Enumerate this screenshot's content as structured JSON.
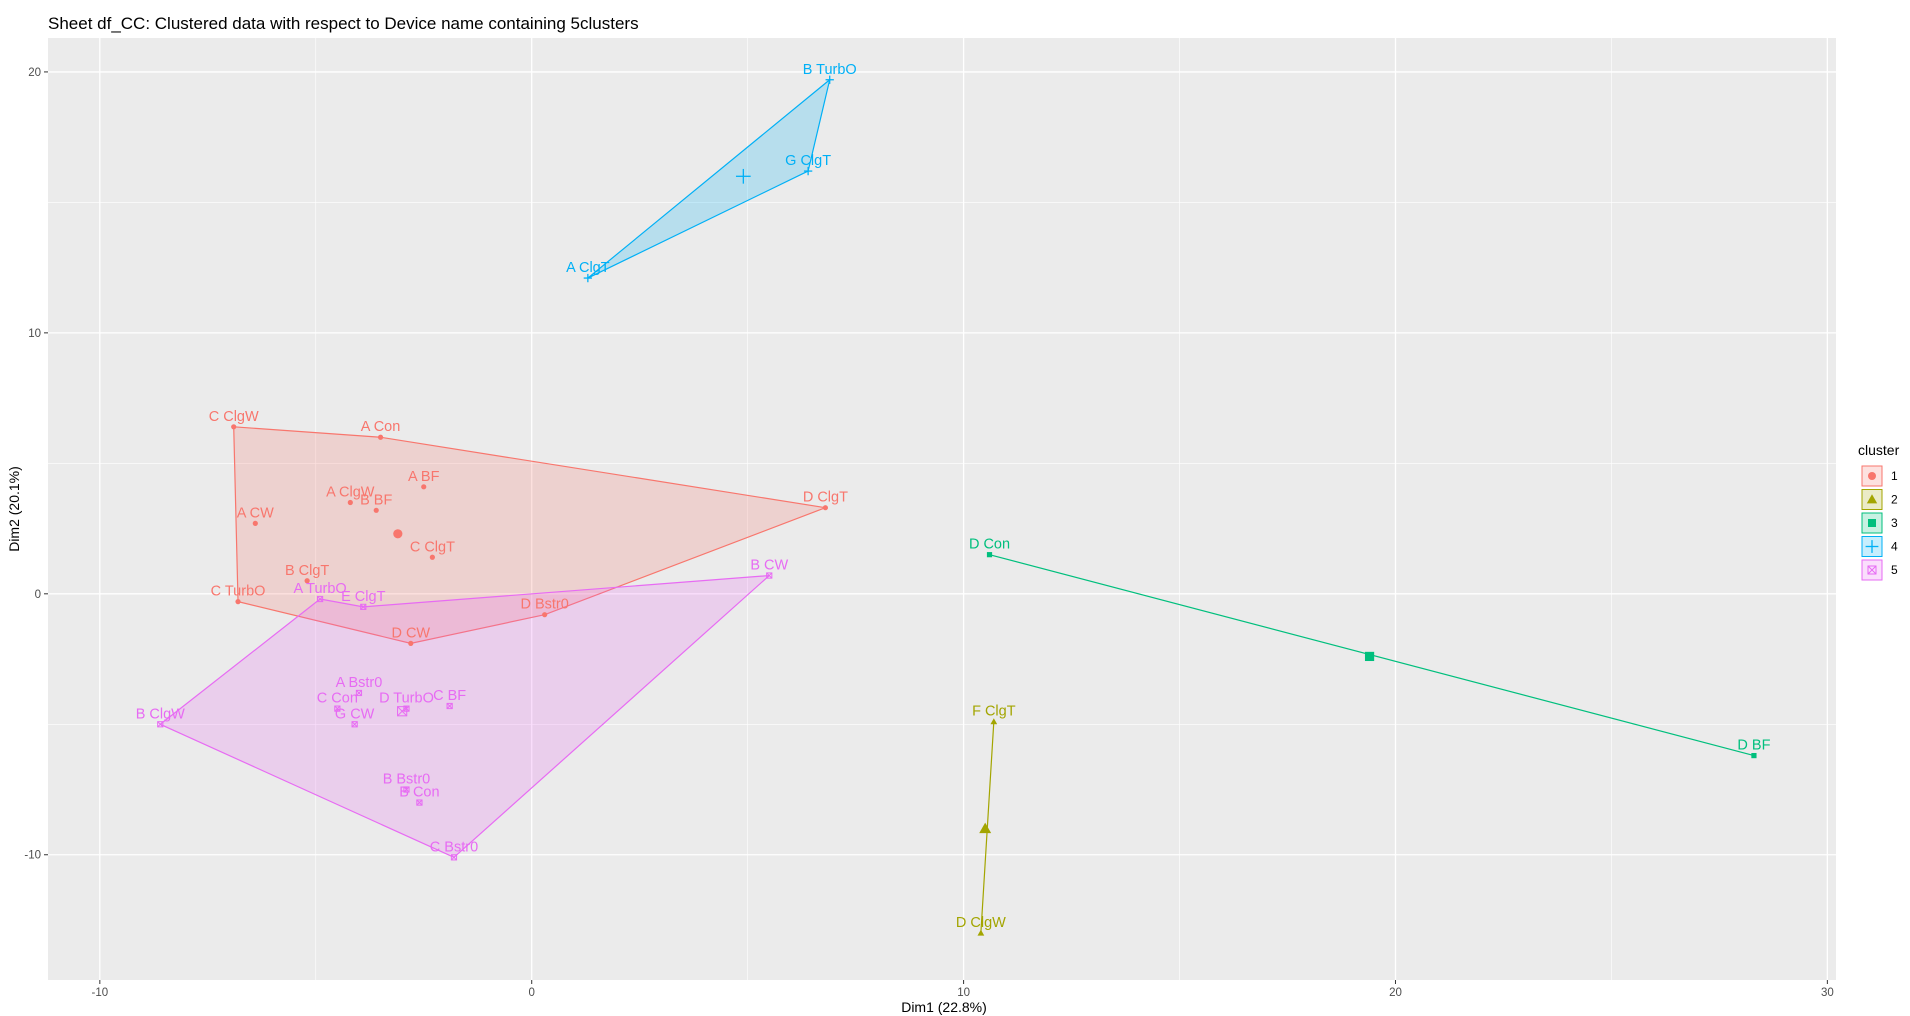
{
  "chart_data": {
    "type": "scatter",
    "title": "Sheet df_CC: Clustered data with respect to Device name containing 5clusters",
    "xlabel": "Dim1 (22.8%)",
    "ylabel": "Dim2 (20.1%)",
    "xlim": [
      -11.2,
      30.2
    ],
    "ylim": [
      -14.8,
      21.3
    ],
    "x_ticks": [
      -10,
      0,
      10,
      20,
      30
    ],
    "y_ticks": [
      -10,
      0,
      10,
      20
    ],
    "grid": true,
    "legend": {
      "title": "cluster",
      "placement": "right"
    },
    "clusters": [
      {
        "name": "1",
        "color": "#F8766D",
        "shape": "circle",
        "center": [
          -3.1,
          2.3
        ],
        "hull": [
          "C ClgW",
          "A Con",
          "D ClgT",
          "D Bstr0",
          "D CW",
          "C TurbO"
        ],
        "points": [
          {
            "label": "C ClgW",
            "x": -6.9,
            "y": 6.4
          },
          {
            "label": "A Con",
            "x": -3.5,
            "y": 6.0
          },
          {
            "label": "A BF",
            "x": -2.5,
            "y": 4.1
          },
          {
            "label": "A ClgW",
            "x": -4.2,
            "y": 3.5
          },
          {
            "label": "B BF",
            "x": -3.6,
            "y": 3.2
          },
          {
            "label": "A CW",
            "x": -6.4,
            "y": 2.7
          },
          {
            "label": "C ClgT",
            "x": -2.3,
            "y": 1.4
          },
          {
            "label": "D ClgT",
            "x": 6.8,
            "y": 3.3
          },
          {
            "label": "B ClgT",
            "x": -5.2,
            "y": 0.5
          },
          {
            "label": "C TurbO",
            "x": -6.8,
            "y": -0.3
          },
          {
            "label": "D Bstr0",
            "x": 0.3,
            "y": -0.8
          },
          {
            "label": "D CW",
            "x": -2.8,
            "y": -1.9
          }
        ]
      },
      {
        "name": "2",
        "color": "#A3A500",
        "shape": "triangle",
        "center": [
          10.5,
          -9.0
        ],
        "hull": [
          "F ClgT",
          "D ClgW"
        ],
        "points": [
          {
            "label": "F ClgT",
            "x": 10.7,
            "y": -4.9
          },
          {
            "label": "D ClgW",
            "x": 10.4,
            "y": -13.0
          }
        ]
      },
      {
        "name": "3",
        "color": "#00BF7D",
        "shape": "square",
        "center": [
          19.4,
          -2.4
        ],
        "hull": [
          "D Con",
          "D BF"
        ],
        "points": [
          {
            "label": "D Con",
            "x": 10.6,
            "y": 1.5
          },
          {
            "label": "D BF",
            "x": 28.3,
            "y": -6.2
          }
        ]
      },
      {
        "name": "4",
        "color": "#00B0F6",
        "shape": "plus",
        "center": [
          4.9,
          16.0
        ],
        "hull": [
          "B TurbO",
          "G ClgT",
          "A ClgT"
        ],
        "points": [
          {
            "label": "B TurbO",
            "x": 6.9,
            "y": 19.7
          },
          {
            "label": "G ClgT",
            "x": 6.4,
            "y": 16.2
          },
          {
            "label": "A ClgT",
            "x": 1.3,
            "y": 12.1
          }
        ]
      },
      {
        "name": "5",
        "color": "#E76BF3",
        "shape": "square-cross",
        "center": [
          -3.0,
          -4.5
        ],
        "hull": [
          "B CW",
          "C Bstr0",
          "B ClgW",
          "A TurbO",
          "E ClgT"
        ],
        "points": [
          {
            "label": "B CW",
            "x": 5.5,
            "y": 0.7
          },
          {
            "label": "A TurbO",
            "x": -4.9,
            "y": -0.2
          },
          {
            "label": "E ClgT",
            "x": -3.9,
            "y": -0.5
          },
          {
            "label": "A Bstr0",
            "x": -4.0,
            "y": -3.8
          },
          {
            "label": "C Con",
            "x": -4.5,
            "y": -4.4
          },
          {
            "label": "D TurbO",
            "x": -2.9,
            "y": -4.4
          },
          {
            "label": "C BF",
            "x": -1.9,
            "y": -4.3
          },
          {
            "label": "G CW",
            "x": -4.1,
            "y": -5.0
          },
          {
            "label": "B ClgW",
            "x": -8.6,
            "y": -5.0
          },
          {
            "label": "B Bstr0",
            "x": -2.9,
            "y": -7.5
          },
          {
            "label": "B Con",
            "x": -2.6,
            "y": -8.0
          },
          {
            "label": "C Bstr0",
            "x": -1.8,
            "y": -10.1
          }
        ]
      }
    ]
  }
}
